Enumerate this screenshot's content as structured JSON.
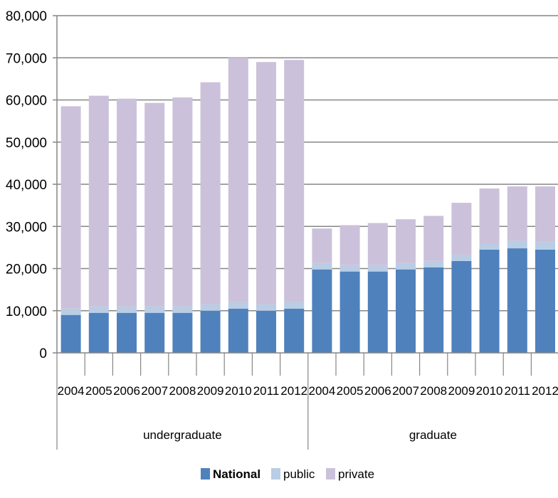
{
  "chart_data": {
    "type": "bar",
    "stacked": true,
    "groups": [
      {
        "name": "undergraduate",
        "categories": [
          "2004",
          "2005",
          "2006",
          "2007",
          "2008",
          "2009",
          "2010",
          "2011",
          "2012"
        ]
      },
      {
        "name": "graduate",
        "categories": [
          "2004",
          "2005",
          "2006",
          "2007",
          "2008",
          "2009",
          "2010",
          "2011",
          "2012"
        ]
      }
    ],
    "series": [
      {
        "name": "National",
        "color": "#4f81bd",
        "values": [
          9000,
          9500,
          9500,
          9500,
          9500,
          10000,
          10500,
          10000,
          10500,
          19800,
          19300,
          19300,
          19800,
          20300,
          21800,
          24500,
          24800,
          24500
        ]
      },
      {
        "name": "public",
        "color": "#b9cde5",
        "values": [
          1500,
          1500,
          1500,
          1500,
          1500,
          1500,
          1500,
          1500,
          1500,
          1500,
          1500,
          1500,
          1500,
          1500,
          1500,
          1500,
          1800,
          1800
        ]
      },
      {
        "name": "private",
        "color": "#ccc1da",
        "values": [
          48000,
          50000,
          49300,
          48300,
          49600,
          52700,
          58000,
          57500,
          57500,
          8200,
          9500,
          10000,
          10400,
          10700,
          12300,
          13000,
          12900,
          13200
        ]
      }
    ],
    "ylim": [
      0,
      80000
    ],
    "yticks": [
      "0",
      "10,000",
      "20,000",
      "30,000",
      "40,000",
      "50,000",
      "60,000",
      "70,000",
      "80,000"
    ],
    "grid": true,
    "legend_position": "bottom",
    "title": "",
    "xlabel": "",
    "ylabel": ""
  }
}
